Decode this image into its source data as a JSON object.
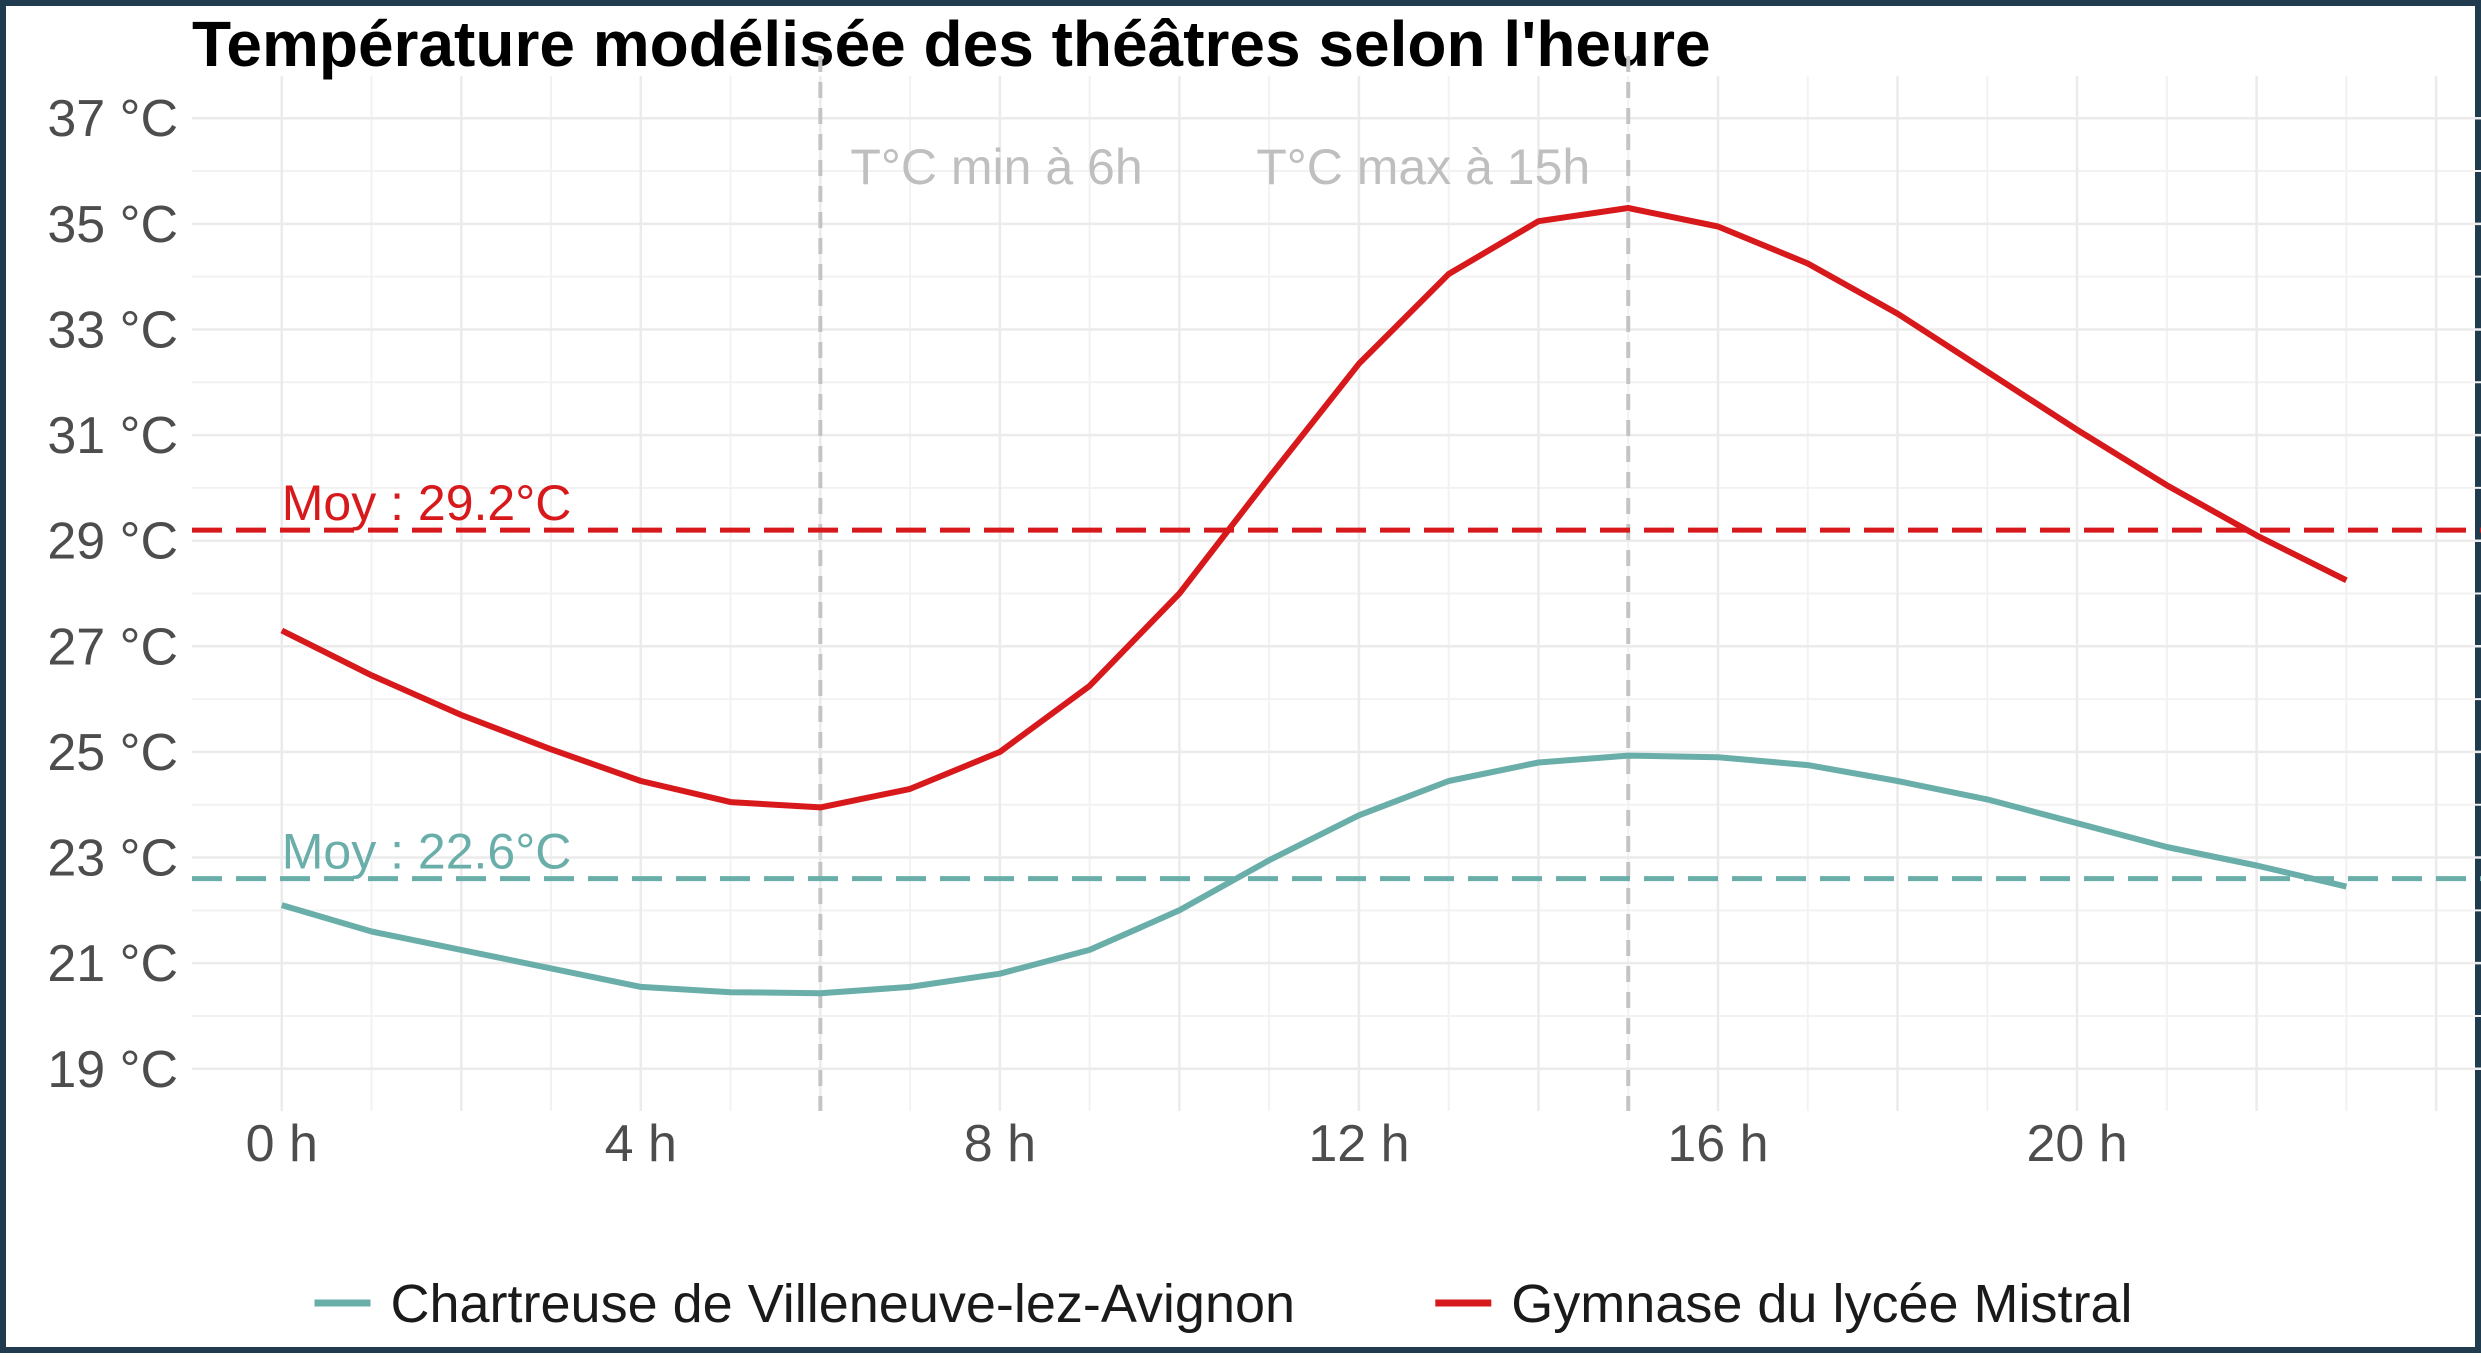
{
  "chart_data": {
    "type": "line",
    "title": "Température modélisée des théâtres selon l'heure",
    "xlabel": "",
    "ylabel": "",
    "x_unit_suffix": " h",
    "y_unit_suffix": " °C",
    "xlim": [
      -1,
      24.5
    ],
    "ylim": [
      18.2,
      37.8
    ],
    "x_ticks": [
      0,
      4,
      8,
      12,
      16,
      20
    ],
    "x_tick_labels": [
      "0 h",
      "4 h",
      "8 h",
      "12 h",
      "16 h",
      "20 h"
    ],
    "y_ticks": [
      19,
      21,
      23,
      25,
      27,
      29,
      31,
      33,
      35,
      37
    ],
    "y_tick_labels": [
      "19 °C",
      "21 °C",
      "23 °C",
      "25 °C",
      "27 °C",
      "29 °C",
      "31 °C",
      "33 °C",
      "35 °C",
      "37 °C"
    ],
    "grid": true,
    "legend_position": "bottom",
    "x": [
      0,
      1,
      2,
      3,
      4,
      5,
      6,
      7,
      8,
      9,
      10,
      11,
      12,
      13,
      14,
      15,
      16,
      17,
      18,
      19,
      20,
      21,
      22,
      23
    ],
    "series": [
      {
        "name": "Chartreuse de Villeneuve-lez-Avignon",
        "color": "#6aaeaa",
        "values": [
          22.1,
          21.6,
          21.25,
          20.9,
          20.55,
          20.45,
          20.43,
          20.55,
          20.8,
          21.25,
          22.0,
          22.95,
          23.8,
          24.45,
          24.8,
          24.93,
          24.9,
          24.75,
          24.45,
          24.1,
          23.65,
          23.2,
          22.85,
          22.45
        ]
      },
      {
        "name": "Gymnase du lycée Mistral",
        "color": "#d7191c",
        "values": [
          27.3,
          26.45,
          25.7,
          25.05,
          24.45,
          24.05,
          23.95,
          24.3,
          25.0,
          26.25,
          28.0,
          30.2,
          32.35,
          34.05,
          35.05,
          35.3,
          34.95,
          34.25,
          33.3,
          32.2,
          31.1,
          30.05,
          29.1,
          28.25
        ]
      }
    ],
    "annotations": {
      "vertical_lines": [
        {
          "x": 6,
          "label": "T°C min à 6h"
        },
        {
          "x": 15,
          "label": "T°C max à 15h"
        }
      ],
      "mean_lines": [
        {
          "series": "Chartreuse de Villeneuve-lez-Avignon",
          "y": 22.6,
          "label": "Moy : 22.6°C"
        },
        {
          "series": "Gymnase du lycée Mistral",
          "y": 29.2,
          "label": "Moy : 29.2°C"
        }
      ]
    }
  }
}
